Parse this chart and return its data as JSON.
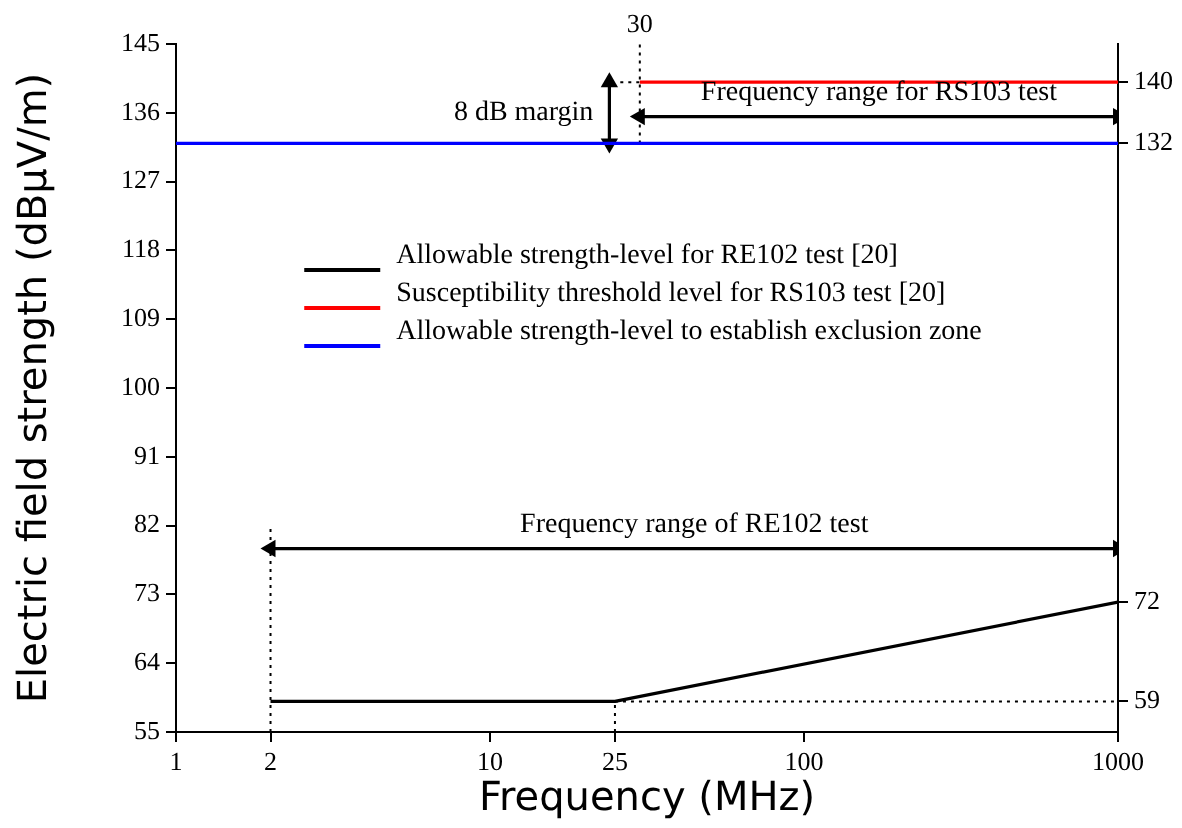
{
  "chart_data": {
    "type": "line",
    "xlabel": "Frequency (MHz)",
    "ylabel": "Electric field strength (dBμV/m)",
    "log": "x",
    "grid": false,
    "legend": "center",
    "marker": "none",
    "xlim": [
      1,
      1000
    ],
    "xticks": [
      1,
      2,
      10,
      25,
      100,
      1000
    ],
    "ylim": [
      55,
      145
    ],
    "yticks": [
      55,
      64,
      73,
      82,
      91,
      100,
      109,
      118,
      127,
      136,
      145
    ],
    "y2lim": [
      55,
      145
    ],
    "y2ticks": [
      59,
      72,
      132,
      140
    ],
    "series": [
      {
        "name": "Allowable strength-level for RE102 test [20]",
        "color": "#000000",
        "x": [
          2,
          25,
          1000
        ],
        "values": [
          59,
          59,
          72
        ],
        "line_style": "solid"
      },
      {
        "name": "Susceptibility threshold level for RS103 test [20]",
        "color": "#ff0000",
        "x": [
          30,
          1000
        ],
        "values": [
          140,
          140
        ],
        "line_style": "solid"
      },
      {
        "name": "Allowable strength-level to establish exclusion zone",
        "color": "#0000ff",
        "x": [
          1,
          1000
        ],
        "values": [
          132,
          132
        ],
        "line_style": "solid"
      },
      {
        "color": "#000000",
        "x": [
          2,
          2
        ],
        "values": [
          55,
          82
        ],
        "line_style": "dotted"
      },
      {
        "color": "#000000",
        "x": [
          25,
          25
        ],
        "values": [
          55,
          59
        ],
        "line_style": "dotted"
      },
      {
        "color": "#000000",
        "x": [
          25,
          1000
        ],
        "values": [
          59,
          59
        ],
        "line_style": "dotted"
      },
      {
        "color": "#000000",
        "x": [
          30,
          30
        ],
        "values": [
          132,
          145
        ],
        "line_style": "dotted"
      },
      {
        "color": "#000000",
        "x": [
          26,
          30
        ],
        "values": [
          140,
          140
        ],
        "line_style": "dotted"
      },
      {
        "color": "#000000",
        "x": [
          24,
          24
        ],
        "values": [
          132,
          140
        ],
        "line_style": "solid",
        "marker": "triangle"
      },
      {
        "color": "#000000",
        "x": [
          30,
          1000
        ],
        "values": [
          135.5,
          135.5
        ],
        "line_style": "solid",
        "marker": "triangle"
      },
      {
        "color": "#000000",
        "x": [
          2,
          1000
        ],
        "values": [
          79,
          79
        ],
        "line_style": "solid",
        "marker": "triangle"
      }
    ],
    "annotations": [
      "8 dB margin",
      "Frequency range for RS103 test",
      "Frequency range of RE102 test",
      {
        "text": "30",
        "x": 30,
        "y": 145
      }
    ]
  }
}
